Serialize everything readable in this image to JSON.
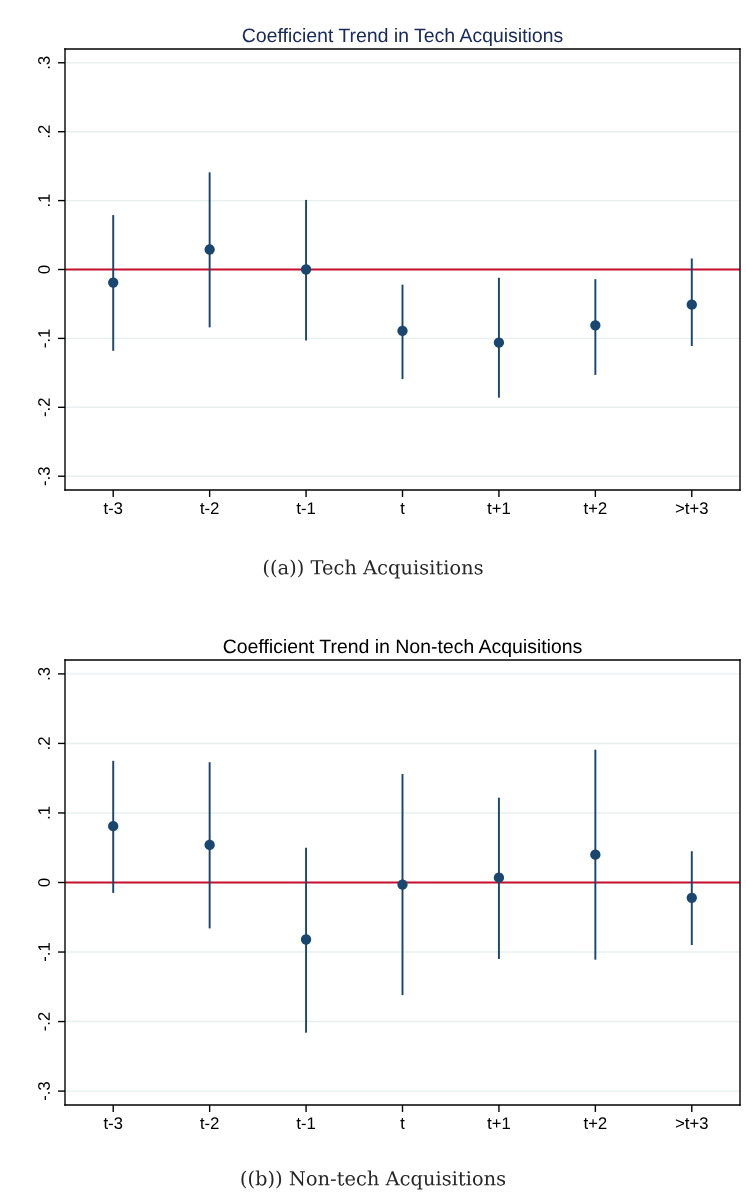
{
  "chart_data": [
    {
      "type": "scatter",
      "title": "Coefficient Trend in Tech Acquisitions",
      "categories": [
        "t-3",
        "t-2",
        "t-1",
        "t",
        "t+1",
        "t+2",
        ">t+3"
      ],
      "series": [
        {
          "color": "#1a476f",
          "values": [
            -0.019,
            0.029,
            0.0,
            -0.089,
            -0.106,
            -0.081,
            -0.051
          ],
          "errors": [
            [
              -0.118,
              0.079
            ],
            [
              -0.084,
              0.141
            ],
            [
              -0.103,
              0.101
            ],
            [
              -0.159,
              -0.022
            ],
            [
              -0.186,
              -0.012
            ],
            [
              -0.153,
              -0.014
            ],
            [
              -0.111,
              0.016
            ]
          ]
        }
      ],
      "ylim": [
        -0.32,
        0.32
      ],
      "yticks": [
        {
          "value": -0.3,
          "label": "-.3"
        },
        {
          "value": -0.2,
          "label": "-.2"
        },
        {
          "value": -0.1,
          "label": "-.1"
        },
        0,
        {
          "value": 0.1,
          "label": ".1"
        },
        {
          "value": 0.2,
          "label": ".2"
        },
        {
          "value": 0.3,
          "label": ".3"
        }
      ],
      "grid": "y",
      "marker": "circle",
      "ref_lines": [
        {
          "axis": "y",
          "value": 0,
          "color": "#c8102e"
        }
      ],
      "annotations": [
        "((a)) Tech Acquisitions"
      ]
    },
    {
      "type": "scatter",
      "title": "Coefficient Trend in Non-tech Acquisitions",
      "categories": [
        "t-3",
        "t-2",
        "t-1",
        "t",
        "t+1",
        "t+2",
        ">t+3"
      ],
      "series": [
        {
          "color": "#1a476f",
          "values": [
            0.081,
            0.054,
            -0.082,
            -0.003,
            0.007,
            0.04,
            -0.022
          ],
          "errors": [
            [
              -0.015,
              0.175
            ],
            [
              -0.066,
              0.173
            ],
            [
              -0.216,
              0.05
            ],
            [
              -0.162,
              0.156
            ],
            [
              -0.11,
              0.122
            ],
            [
              -0.111,
              0.191
            ],
            [
              -0.09,
              0.045
            ]
          ]
        }
      ],
      "ylim": [
        -0.32,
        0.32
      ],
      "yticks": [
        {
          "value": -0.3,
          "label": "-.3"
        },
        {
          "value": -0.2,
          "label": "-.2"
        },
        {
          "value": -0.1,
          "label": "-.1"
        },
        0,
        {
          "value": 0.1,
          "label": ".1"
        },
        {
          "value": 0.2,
          "label": ".2"
        },
        {
          "value": 0.3,
          "label": ".3"
        }
      ],
      "grid": "y",
      "marker": "circle",
      "ref_lines": [
        {
          "axis": "y",
          "value": 0,
          "color": "#c8102e"
        }
      ],
      "annotations": [
        "((b)) Non-tech Acquisitions"
      ]
    }
  ]
}
